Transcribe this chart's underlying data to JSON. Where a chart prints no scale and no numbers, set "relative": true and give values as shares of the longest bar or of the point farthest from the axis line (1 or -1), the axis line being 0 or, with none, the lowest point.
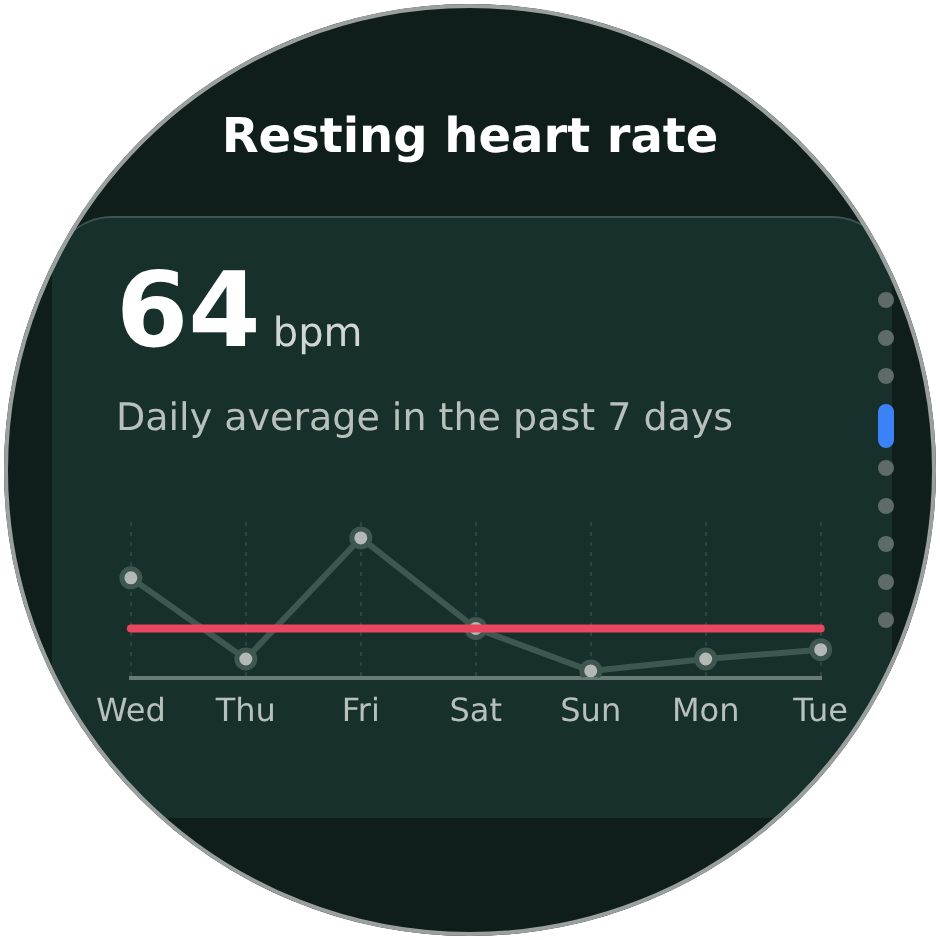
{
  "chart_data": {
    "type": "line",
    "title": "Resting heart rate",
    "subtitle": "Daily average in the past 7 days",
    "annotations": [
      "64",
      "bpm"
    ],
    "categories": [
      "Wed",
      "Thu",
      "Fri",
      "Sat",
      "Sun",
      "Mon",
      "Tue"
    ],
    "series": [
      {
        "color": "#3e5751",
        "values": [
          0.7,
          0.09,
          1,
          0.32,
          0,
          0.09,
          0.16
        ]
      }
    ],
    "relative": true,
    "marker": "circle",
    "grid": "x",
    "ref_lines": [
      {
        "axis": "y",
        "value": 0.32,
        "color": "#e8475f"
      }
    ]
  }
}
